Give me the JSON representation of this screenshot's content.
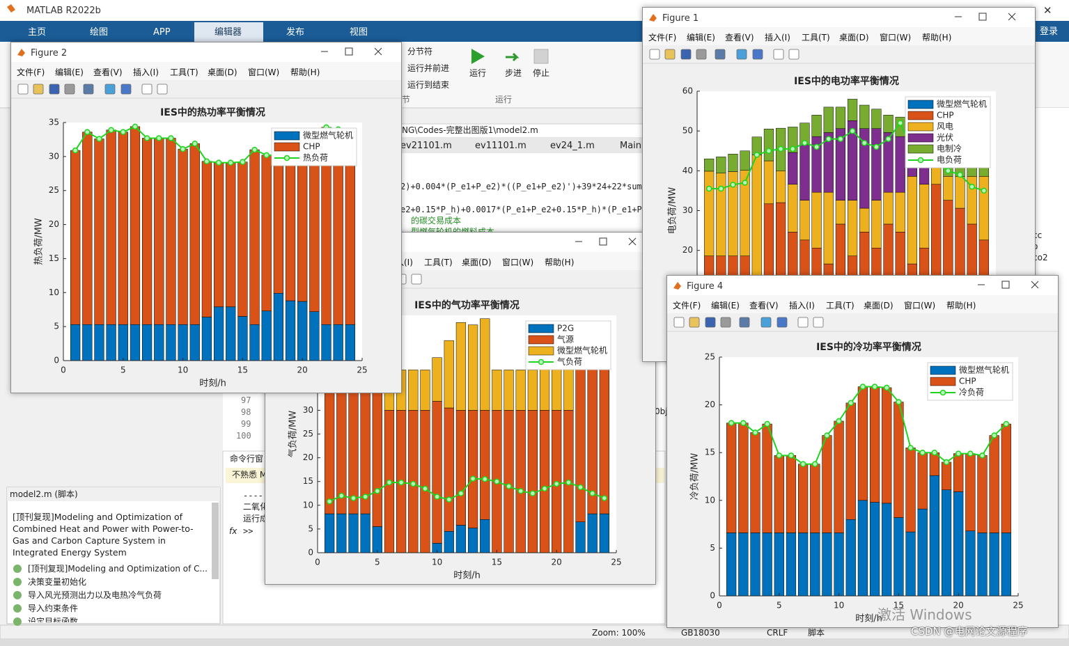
{
  "app": {
    "title": "MATLAB R2022b",
    "tabs": [
      "主页",
      "绘图",
      "APP",
      "编辑器",
      "发布",
      "视图"
    ],
    "login": "登录",
    "toolstrip": {
      "section_break": "分节符",
      "run_advance": "运行并前进",
      "run_to_end": "运行到结束",
      "run": "运行",
      "step": "步进",
      "stop": "停止",
      "section_group": "节",
      "run_group": "运行"
    }
  },
  "editor": {
    "path": "NG\\Codes-完整出图版1\\model2.m",
    "tabs": [
      "ev21101.m",
      "ev11101.m",
      "ev24_1.m",
      "Main."
    ],
    "code": [
      "2)+0.004*(P_e1+P_e2)*((P_e1+P_e2)')+39*24+22*sum",
      "e2+0.15*P_h)+0.0017*(P_e1+P_e2+0.15*P_h)*(P_e1+P",
      "的碳交易成本",
      "型燃气轮机的燃料成本"
    ],
    "line_numbers": [
      "97",
      "98",
      "99",
      "100"
    ]
  },
  "command": {
    "title": "命令行窗",
    "notice": "不熟悉 M",
    "lines": [
      "----",
      "二氧化",
      "运行成"
    ],
    "fx": "fx",
    "prompt": ">>"
  },
  "fragments": [
    "0bj",
    "cc",
    "o",
    "co2"
  ],
  "left_panel": {
    "file": "model2.m  (脚本)",
    "description": "[顶刊复现]Modeling and Optimization of Combined Heat and Power with Power-to-Gas and Carbon Capture System in Integrated Energy System",
    "items": [
      "[顶刊复现]Modeling and Optimization of C...",
      "决策变量初始化",
      "导入风光预测出力以及电热冷气负荷",
      "导入约束条件",
      "设定目标函数"
    ]
  },
  "status": [
    "Zoom: 100%",
    "GB18030",
    "CRLF",
    "脚本"
  ],
  "watermark": {
    "activate": "激活 Windows",
    "credit": "CSDN @电网论文源程序"
  },
  "figure_titles": [
    "Figure 2",
    "Figure 1",
    "Figure 4"
  ],
  "figure_menus": [
    "文件(F)",
    "编辑(E)",
    "查看(V)",
    "插入(I)",
    "工具(T)",
    "桌面(D)",
    "窗口(W)",
    "帮助(H)"
  ],
  "chart_data": [
    {
      "type": "bar",
      "stacked": true,
      "title": "IES中的热功率平衡情况",
      "xlabel": "时刻/h",
      "ylabel": "热负荷/MW",
      "x": [
        1,
        2,
        3,
        4,
        5,
        6,
        7,
        8,
        9,
        10,
        11,
        12,
        13,
        14,
        15,
        16,
        17,
        18,
        19,
        20,
        21,
        22,
        23,
        24
      ],
      "xlim": [
        0,
        25
      ],
      "xticks": [
        0,
        5,
        10,
        15,
        20,
        25
      ],
      "ylim": [
        0,
        35
      ],
      "yticks": [
        0,
        5,
        10,
        15,
        20,
        25,
        30,
        35
      ],
      "legend": "northeast",
      "series": [
        {
          "name": "微型燃气轮机",
          "color": "#0072bd",
          "values": [
            5.3,
            5.3,
            5.3,
            5.3,
            5.3,
            5.3,
            5.3,
            5.3,
            5.3,
            5.3,
            5.3,
            6.4,
            7.9,
            7.9,
            6.5,
            5.3,
            7.3,
            9.9,
            8.8,
            8.7,
            7.2,
            5.3,
            5.3,
            5.3
          ]
        },
        {
          "name": "CHP",
          "color": "#d95319",
          "values": [
            25.6,
            28.3,
            27.3,
            28.6,
            28.3,
            29.1,
            27.4,
            27.4,
            27.4,
            25.8,
            26.6,
            22.9,
            21.2,
            21.2,
            22.7,
            25.7,
            22.9,
            20.3,
            21.4,
            20.3,
            22.1,
            29.0,
            28.7,
            27.6
          ]
        },
        {
          "name": "热负荷",
          "type": "line",
          "color": "#1fd41f",
          "values": [
            30.9,
            33.6,
            32.6,
            33.9,
            33.6,
            34.4,
            32.7,
            32.7,
            32.7,
            31.1,
            31.9,
            29.3,
            29.1,
            29.1,
            29.2,
            31.0,
            30.2,
            30.2,
            30.2,
            29.0,
            29.3,
            34.3,
            34.0,
            32.9
          ]
        }
      ]
    },
    {
      "type": "bar",
      "stacked": true,
      "title": "IES中的电功率平衡情况",
      "ylabel": "电负荷/MW",
      "x": [
        1,
        2,
        3,
        4,
        5,
        6,
        7,
        8,
        9,
        10,
        11,
        12,
        13,
        14,
        15,
        16,
        17,
        18,
        19,
        20,
        21,
        22,
        23,
        24
      ],
      "xlim": [
        0,
        25
      ],
      "ylim": [
        0,
        60
      ],
      "yticks": [
        0,
        10,
        20,
        30,
        40,
        50,
        60
      ],
      "legend": "northeast",
      "series": [
        {
          "name": "微型燃气轮机",
          "color": "#0072bd",
          "values": [
            6.6,
            6.6,
            6.6,
            6.6,
            6.6,
            6.6,
            6.6,
            6.6,
            6.6,
            6.6,
            6.6,
            6.6,
            6.6,
            6.6,
            6.6,
            6.6,
            6.6,
            6.6,
            6.6,
            6.6,
            6.6,
            6.6,
            6.6,
            6.6
          ]
        },
        {
          "name": "CHP",
          "color": "#d95319",
          "values": [
            12,
            12,
            12,
            12,
            4.4,
            25.1,
            25.4,
            18,
            16,
            14,
            10,
            20,
            12,
            18,
            14,
            20,
            18,
            10,
            14,
            30,
            26,
            24,
            20,
            16
          ]
        },
        {
          "name": "风电",
          "color": "#edb120",
          "values": [
            21.3,
            20.8,
            21.2,
            21.5,
            33.0,
            10.8,
            8.0,
            12.0,
            10.0,
            14.0,
            18.0,
            6.0,
            14.0,
            6.0,
            12.0,
            8.0,
            10.0,
            22.0,
            16.0,
            8.0,
            6.0,
            8.0,
            12.0,
            16.0
          ]
        },
        {
          "name": "光伏",
          "color": "#7e2f8e",
          "values": [
            0,
            0,
            0,
            0,
            0,
            0,
            0,
            8,
            14,
            14,
            15,
            18,
            20,
            20,
            18,
            15,
            14,
            12,
            12,
            0,
            0,
            0,
            0,
            0
          ]
        },
        {
          "name": "电制冷",
          "color": "#77ac30",
          "values": [
            3.1,
            4.1,
            4.4,
            4.9,
            4.5,
            8.0,
            10.7,
            6.4,
            5.4,
            5.4,
            6.4,
            5.4,
            5.4,
            5.9,
            4.9,
            4.4,
            4.9,
            5.4,
            6.4,
            8.4,
            8.4,
            7.4,
            4.4,
            3.9
          ]
        },
        {
          "name": "电负荷",
          "type": "line",
          "color": "#1fd41f",
          "values": [
            35.5,
            35.5,
            36.5,
            37,
            44,
            45,
            45.5,
            45.5,
            47,
            46,
            48,
            48,
            50,
            47,
            46,
            48,
            52,
            45,
            43,
            42,
            40,
            39,
            36,
            35
          ]
        }
      ]
    },
    {
      "type": "bar",
      "stacked": true,
      "title": "IES中的气功率平衡情况",
      "xlabel": "时刻/h",
      "ylabel": "气负荷/MW",
      "x": [
        1,
        2,
        3,
        4,
        5,
        6,
        7,
        8,
        9,
        10,
        11,
        12,
        13,
        14,
        15,
        16,
        17,
        18,
        19,
        20,
        21,
        22,
        23,
        24
      ],
      "xlim": [
        0,
        25
      ],
      "xticks": [
        0,
        5,
        10,
        15,
        20,
        25
      ],
      "ylim": [
        0,
        50
      ],
      "yticks": [
        0,
        5,
        10,
        15,
        20,
        25,
        30,
        35,
        40,
        45,
        50
      ],
      "legend": "northeast",
      "series": [
        {
          "name": "P2G",
          "color": "#0072bd",
          "values": [
            8.2,
            8.2,
            8.2,
            8.2,
            5.5,
            0,
            0,
            0,
            0,
            2.0,
            4.5,
            5.8,
            5.2,
            7.0,
            0,
            0,
            0,
            0,
            0,
            0,
            0,
            6.5,
            8.2,
            8.2
          ]
        },
        {
          "name": "气源",
          "color": "#d95319",
          "values": [
            27.8,
            27.8,
            27.8,
            27.8,
            30.5,
            30,
            30,
            30,
            30,
            29.9,
            26.0,
            24.2,
            24.8,
            23.0,
            30,
            30,
            30,
            30,
            30,
            30,
            30,
            32.4,
            30.7,
            30.7
          ]
        },
        {
          "name": "微型燃气轮机",
          "color": "#edb120",
          "values": [
            8,
            8,
            8,
            8,
            8,
            8.5,
            8.5,
            8.5,
            8.5,
            9.2,
            14.2,
            18.5,
            18,
            19.3,
            8.5,
            8.5,
            8.5,
            8.5,
            11.1,
            14.7,
            18.5,
            9.6,
            8.1,
            8.1
          ]
        },
        {
          "name": "气负荷",
          "type": "line",
          "color": "#1fd41f",
          "values": [
            10.8,
            12,
            11.5,
            11.8,
            13,
            14.8,
            14.8,
            14.5,
            13.5,
            11.8,
            11.2,
            12.5,
            15.6,
            15.5,
            15,
            14,
            13,
            12.5,
            13.5,
            14.5,
            14.8,
            13.8,
            12.5,
            11.5
          ]
        }
      ]
    },
    {
      "type": "bar",
      "stacked": true,
      "title": "IES中的冷功率平衡情况",
      "xlabel": "时刻/h",
      "ylabel": "冷负荷/MW",
      "x": [
        1,
        2,
        3,
        4,
        5,
        6,
        7,
        8,
        9,
        10,
        11,
        12,
        13,
        14,
        15,
        16,
        17,
        18,
        19,
        20,
        21,
        22,
        23,
        24
      ],
      "xlim": [
        0,
        25
      ],
      "xticks": [
        0,
        5,
        10,
        15,
        20,
        25
      ],
      "ylim": [
        0,
        25
      ],
      "yticks": [
        0,
        5,
        10,
        15,
        20,
        25
      ],
      "legend": "northeast",
      "series": [
        {
          "name": "微型燃气轮机",
          "color": "#0072bd",
          "values": [
            6.6,
            6.6,
            6.6,
            6.6,
            6.6,
            6.6,
            6.6,
            6.6,
            6.6,
            6.6,
            8.0,
            10.0,
            9.8,
            9.7,
            8.2,
            6.7,
            9.1,
            12.6,
            11.1,
            10.9,
            6.8,
            6.6,
            6.6,
            6.6
          ]
        },
        {
          "name": "CHP",
          "color": "#d95319",
          "values": [
            11.5,
            11.5,
            10.5,
            11.4,
            8.1,
            8.1,
            7.2,
            7.2,
            10.2,
            11.7,
            12.2,
            11.9,
            12.1,
            12.1,
            12.1,
            8.8,
            5.9,
            2.4,
            2.9,
            4.0,
            8.1,
            8.1,
            10.2,
            11.4
          ]
        },
        {
          "name": "冷负荷",
          "type": "line",
          "color": "#1fd41f",
          "values": [
            18.1,
            18.1,
            17.1,
            18.0,
            14.7,
            14.7,
            13.8,
            13.8,
            16.8,
            18.3,
            20.2,
            21.9,
            21.9,
            21.8,
            20.3,
            15.5,
            15.0,
            15.0,
            14.0,
            14.9,
            14.9,
            14.7,
            16.8,
            18.0
          ]
        }
      ]
    }
  ]
}
